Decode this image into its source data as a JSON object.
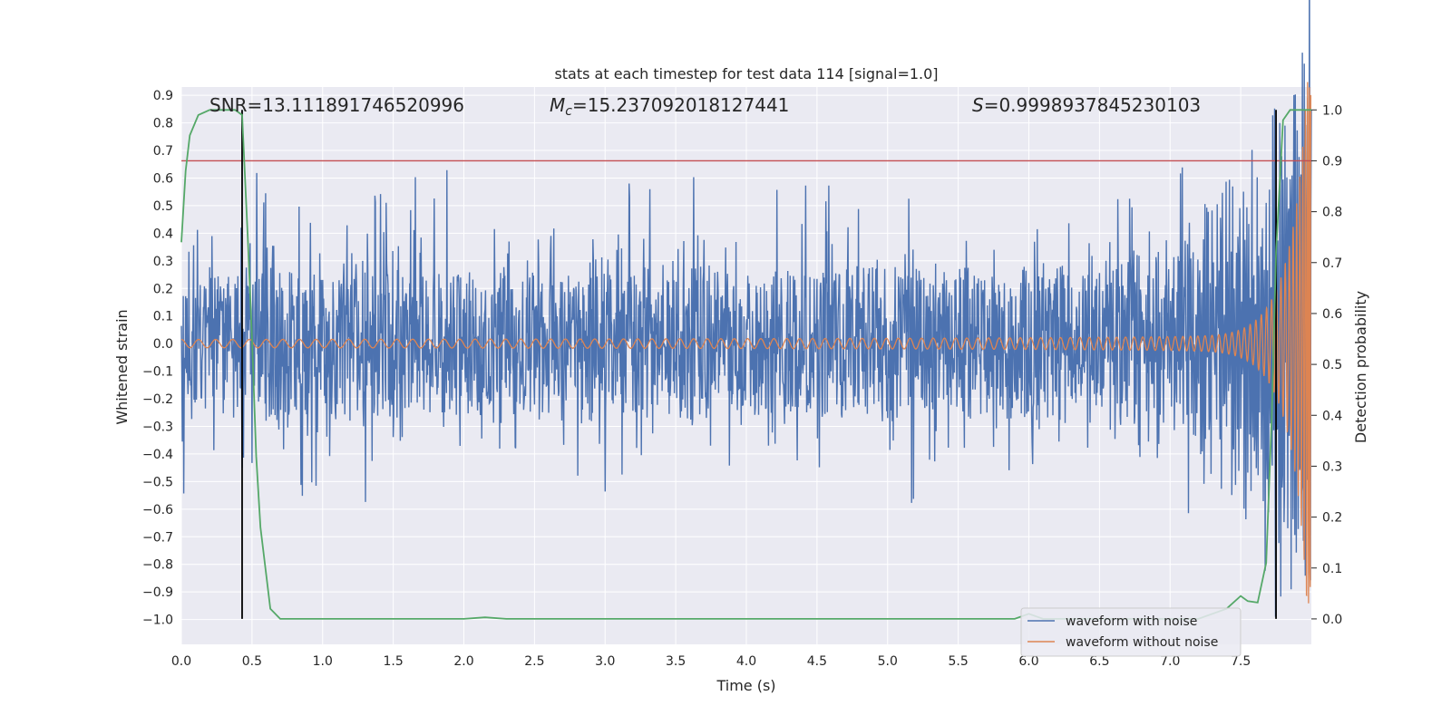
{
  "chart_data": {
    "type": "line",
    "title": "stats at each timestep for test data 114 [signal=1.0]",
    "xlabel": "Time (s)",
    "ylabel": "Whitened strain",
    "y2label": "Detection probability",
    "xlim": [
      0.0,
      8.0
    ],
    "ylim": [
      -1.09,
      0.93
    ],
    "y2lim": [
      -0.05,
      1.045
    ],
    "x_ticks": [
      "0.0",
      "0.5",
      "1.0",
      "1.5",
      "2.0",
      "2.5",
      "3.0",
      "3.5",
      "4.0",
      "4.5",
      "5.0",
      "5.5",
      "6.0",
      "6.5",
      "7.0",
      "7.5"
    ],
    "y_ticks": [
      "0.9",
      "0.8",
      "0.7",
      "0.6",
      "0.5",
      "0.4",
      "0.3",
      "0.2",
      "0.1",
      "0.0",
      "−0.1",
      "−0.2",
      "−0.3",
      "−0.4",
      "−0.5",
      "−0.6",
      "−0.7",
      "−0.8",
      "−0.9",
      "−1.0"
    ],
    "y2_ticks": [
      "1.0",
      "0.9",
      "0.8",
      "0.7",
      "0.6",
      "0.5",
      "0.4",
      "0.3",
      "0.2",
      "0.1",
      "0.0"
    ],
    "grid": true,
    "legend_position": "lower-right",
    "annotations": {
      "snr": "SNR=13.111891746520996",
      "mc_symbol": "M",
      "mc_sub": "c",
      "mc_value": "=15.237092018127441",
      "s_symbol": "S",
      "s_value": "=0.9998937845230103"
    },
    "threshold_line": {
      "axis": "right",
      "value": 0.9,
      "color": "#c44e52"
    },
    "vertical_lines": [
      0.43,
      7.75
    ],
    "series": [
      {
        "name": "waveform with noise",
        "axis": "left",
        "color": "#4c72b0",
        "style": "noise",
        "core_amplitude": 0.27,
        "spike_range": [
          -0.6,
          0.65
        ]
      },
      {
        "name": "waveform without noise",
        "axis": "left",
        "color": "#dd8452",
        "style": "chirp",
        "base_amplitude": 0.015,
        "peak_amplitude": 0.95,
        "merger_time": 8.0
      },
      {
        "name": "detection probability",
        "axis": "right",
        "color": "#55a868",
        "x": [
          0.0,
          0.03,
          0.06,
          0.12,
          0.2,
          0.3,
          0.38,
          0.43,
          0.47,
          0.5,
          0.53,
          0.56,
          0.63,
          0.7,
          1.0,
          1.5,
          2.0,
          2.15,
          2.3,
          2.5,
          3.0,
          4.0,
          5.0,
          5.5,
          5.9,
          6.0,
          6.1,
          6.5,
          7.0,
          7.2,
          7.4,
          7.5,
          7.55,
          7.62,
          7.68,
          7.72,
          7.75,
          7.8,
          7.85,
          7.9,
          7.95,
          8.0
        ],
        "values": [
          0.74,
          0.88,
          0.95,
          0.99,
          1.0,
          1.0,
          1.0,
          0.99,
          0.75,
          0.55,
          0.32,
          0.18,
          0.02,
          0.0,
          0.0,
          0.0,
          0.0,
          0.003,
          0.0,
          0.0,
          0.0,
          0.0,
          0.0,
          0.0,
          0.0,
          0.01,
          0.0,
          0.0,
          0.0,
          0.0,
          0.02,
          0.045,
          0.035,
          0.032,
          0.11,
          0.4,
          0.72,
          0.98,
          1.0,
          1.0,
          1.0,
          1.0
        ]
      }
    ]
  }
}
